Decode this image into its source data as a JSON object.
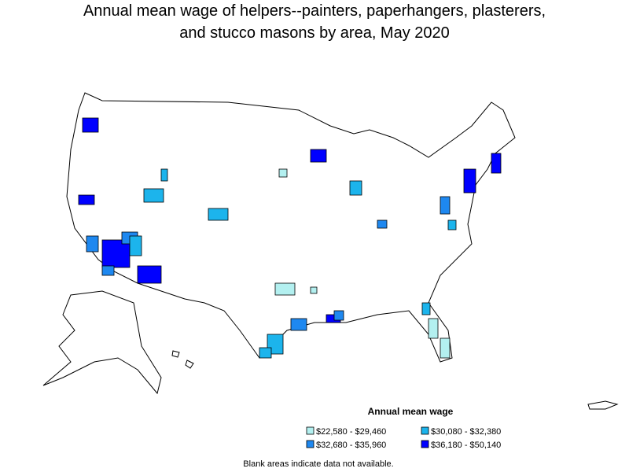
{
  "title_lines": [
    "Annual mean wage of helpers--painters, paperhangers, plasterers,",
    "and stucco masons by area, May 2020"
  ],
  "legend": {
    "title": "Annual mean wage",
    "items": [
      {
        "label": "$22,580 - $29,460",
        "color": "#b3f0f0"
      },
      {
        "label": "$30,080 - $32,380",
        "color": "#1cb4ec"
      },
      {
        "label": "$32,680 - $35,960",
        "color": "#1e88f0"
      },
      {
        "label": "$36,180 - $50,140",
        "color": "#0000ff"
      }
    ]
  },
  "note": "Blank areas indicate data not available."
}
